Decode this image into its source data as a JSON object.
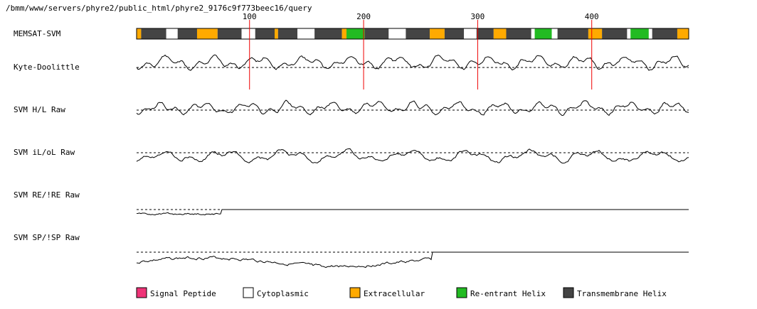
{
  "path_text": "/bmm/www/servers/phyre2/public_html/phyre2_9176c9f773beec16/query",
  "chart_data": {
    "type": "line",
    "x_range": [
      1,
      485
    ],
    "rulers": [
      100,
      200,
      300,
      400
    ],
    "rows": [
      {
        "label": "MEMSAT-SVM",
        "type": "topology"
      },
      {
        "label": "Kyte-Doolittle",
        "type": "line"
      },
      {
        "label": "SVM H/L Raw",
        "type": "line"
      },
      {
        "label": "SVM iL/oL Raw",
        "type": "line"
      },
      {
        "label": "SVM RE/!RE Raw",
        "type": "line"
      },
      {
        "label": "SVM SP/!SP Raw",
        "type": "line"
      }
    ],
    "topology_segments": [
      {
        "start": 1,
        "end": 5,
        "class": "extracellular"
      },
      {
        "start": 5,
        "end": 27,
        "class": "transmembrane"
      },
      {
        "start": 27,
        "end": 37,
        "class": "cytoplasmic"
      },
      {
        "start": 37,
        "end": 54,
        "class": "transmembrane"
      },
      {
        "start": 54,
        "end": 72,
        "class": "extracellular"
      },
      {
        "start": 72,
        "end": 93,
        "class": "transmembrane"
      },
      {
        "start": 93,
        "end": 105,
        "class": "cytoplasmic"
      },
      {
        "start": 105,
        "end": 122,
        "class": "transmembrane"
      },
      {
        "start": 122,
        "end": 125,
        "class": "extracellular"
      },
      {
        "start": 125,
        "end": 142,
        "class": "transmembrane"
      },
      {
        "start": 142,
        "end": 157,
        "class": "cytoplasmic"
      },
      {
        "start": 157,
        "end": 181,
        "class": "transmembrane"
      },
      {
        "start": 181,
        "end": 185,
        "class": "extracellular"
      },
      {
        "start": 185,
        "end": 201,
        "class": "reentrant"
      },
      {
        "start": 201,
        "end": 222,
        "class": "transmembrane"
      },
      {
        "start": 222,
        "end": 237,
        "class": "cytoplasmic"
      },
      {
        "start": 237,
        "end": 258,
        "class": "transmembrane"
      },
      {
        "start": 258,
        "end": 271,
        "class": "extracellular"
      },
      {
        "start": 271,
        "end": 288,
        "class": "transmembrane"
      },
      {
        "start": 288,
        "end": 299,
        "class": "cytoplasmic"
      },
      {
        "start": 299,
        "end": 314,
        "class": "transmembrane"
      },
      {
        "start": 314,
        "end": 325,
        "class": "extracellular"
      },
      {
        "start": 325,
        "end": 347,
        "class": "transmembrane"
      },
      {
        "start": 347,
        "end": 350,
        "class": "cytoplasmic"
      },
      {
        "start": 350,
        "end": 365,
        "class": "reentrant"
      },
      {
        "start": 365,
        "end": 370,
        "class": "cytoplasmic"
      },
      {
        "start": 370,
        "end": 397,
        "class": "transmembrane"
      },
      {
        "start": 397,
        "end": 409,
        "class": "extracellular"
      },
      {
        "start": 409,
        "end": 431,
        "class": "transmembrane"
      },
      {
        "start": 431,
        "end": 434,
        "class": "cytoplasmic"
      },
      {
        "start": 434,
        "end": 450,
        "class": "reentrant"
      },
      {
        "start": 450,
        "end": 453,
        "class": "cytoplasmic"
      },
      {
        "start": 453,
        "end": 475,
        "class": "transmembrane"
      },
      {
        "start": 475,
        "end": 485,
        "class": "extracellular"
      }
    ],
    "legend": [
      {
        "label": "Signal Peptide",
        "class": "signal"
      },
      {
        "label": "Cytoplasmic",
        "class": "cytoplasmic"
      },
      {
        "label": "Extracellular",
        "class": "extracellular"
      },
      {
        "label": "Re-entrant Helix",
        "class": "reentrant"
      },
      {
        "label": "Transmembrane Helix",
        "class": "transmembrane"
      }
    ],
    "colors": {
      "signal": "#ee3377",
      "cytoplasmic": "#ffffff",
      "extracellular": "#ffaa00",
      "reentrant": "#22bb22",
      "transmembrane": "#444444",
      "ruler": "#ee0000",
      "line": "#000000"
    }
  }
}
